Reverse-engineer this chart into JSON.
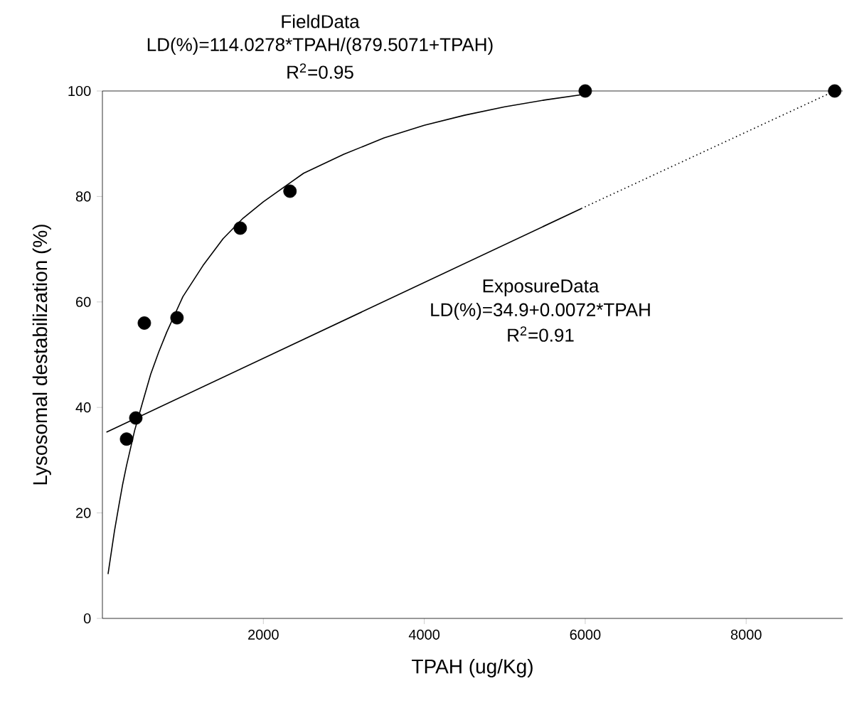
{
  "chart_data": {
    "type": "scatter",
    "xlabel": "TPAH (ug/Kg)",
    "ylabel": "Lysosomal destabilization (%)",
    "xlim": [
      0,
      9200
    ],
    "ylim": [
      0,
      100
    ],
    "xticks": [
      2000,
      4000,
      6000,
      8000
    ],
    "yticks": [
      0,
      20,
      40,
      60,
      80,
      100
    ],
    "grid": false,
    "series": [
      {
        "marker": "circle",
        "color": "#000000",
        "x": [
          300,
          415,
          521,
          927,
          1713,
          2331
        ],
        "values": [
          34,
          38,
          56,
          57,
          74,
          81
        ]
      },
      {
        "marker": "circle",
        "color": "#000000",
        "x": [
          6000,
          9100
        ],
        "values": [
          100,
          100
        ]
      },
      {
        "type": "line",
        "line_style": "solid",
        "color": "#000000",
        "x": [
          70,
          150,
          200,
          250,
          300,
          400,
          500,
          600,
          700,
          800,
          1000,
          1250,
          1500,
          1750,
          2000,
          2500,
          3000,
          3500,
          4000,
          4500,
          5000,
          5500,
          6000
        ],
        "values": [
          8.4,
          16.6,
          21,
          25.3,
          29,
          35.6,
          41,
          46.3,
          50.5,
          54.3,
          61,
          66.9,
          72,
          75.9,
          79,
          84.4,
          88,
          91.1,
          93.5,
          95.4,
          97,
          98.3,
          99.4
        ]
      },
      {
        "type": "line",
        "line_style": "solid",
        "color": "#000000",
        "x": [
          50,
          5950
        ],
        "values": [
          35.3,
          77.7
        ]
      },
      {
        "type": "line",
        "line_style": "dotted",
        "color": "#000000",
        "x": [
          5950,
          9100
        ],
        "values": [
          77.7,
          100
        ]
      }
    ],
    "annotations": [
      "FieldData",
      "LD(%)=114.0278*TPAH/(879.5071+TPAH)",
      "R$^{2}$=0.95",
      "ExposureData",
      "LD(%)=34.9+0.0072*TPAH",
      "R$^{2}$=0.91"
    ]
  }
}
